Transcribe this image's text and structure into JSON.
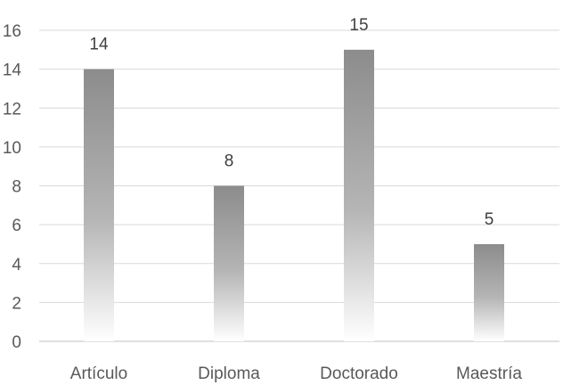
{
  "chart_data": {
    "type": "bar",
    "title": "",
    "xlabel": "",
    "ylabel": "",
    "categories": [
      "Artículo",
      "Diploma",
      "Doctorado",
      "Maestría"
    ],
    "values": [
      14,
      8,
      15,
      5
    ],
    "data_labels": [
      "14",
      "8",
      "15",
      "5"
    ],
    "ylim": [
      0,
      16
    ],
    "yticks": [
      0,
      2,
      4,
      6,
      8,
      10,
      12,
      14,
      16
    ],
    "ytick_labels": [
      "0",
      "2",
      "4",
      "6",
      "8",
      "10",
      "12",
      "14",
      "16"
    ],
    "grid": true,
    "legend": "none",
    "colors": {
      "bar_top": "#8c8c8c",
      "bar_bottom": "#ffffff",
      "grid": "#d9d9d9",
      "text": "#595959"
    }
  }
}
